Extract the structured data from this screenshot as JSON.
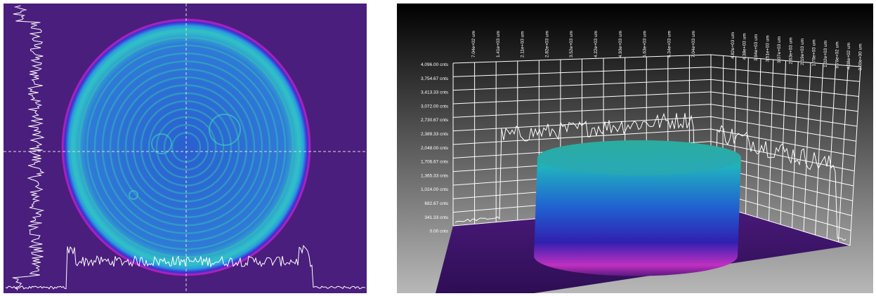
{
  "z_axis_labels": [
    "4,096.00 cnts",
    "3,754.67 cnts",
    "3,413.33 cnts",
    "3,072.00 cnts",
    "2,730.67 cnts",
    "2,389.33 cnts",
    "2,048.00 cnts",
    "1,706.67 cnts",
    "1,365.33 cnts",
    "1,024.00 cnts",
    "682.67 cnts",
    "341.33 cnts",
    "0.00 cnts"
  ],
  "x_axis_labels": [
    "7.04e+02 um",
    "1.41e+03 um",
    "2.11e+03 um",
    "2.82e+03 um",
    "3.52e+03 um",
    "4.22e+03 um",
    "4.93e+03 um",
    "5.63e+03 um",
    "6.34e+03 um",
    "7.04e+03 um"
  ],
  "y_axis_labels": [
    "4.82e+03 um",
    "4.38e+03 um",
    "3.94e+03 um",
    "3.51e+03 um",
    "3.07e+03 um",
    "2.63e+03 um",
    "2.19e+03 um",
    "1.76e+03 um",
    "1.32e+03 um",
    "8.76e+02 um",
    "4.38e+02 um",
    "0.00e+00 um"
  ]
}
